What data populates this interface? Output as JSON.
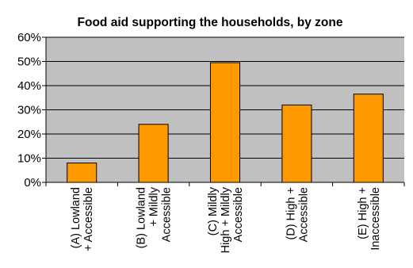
{
  "chart_data": {
    "type": "bar",
    "title": "Food aid supporting the households, by zone",
    "xlabel": "",
    "ylabel": "",
    "categories": [
      [
        "(A) Lowland",
        "+ Accessible"
      ],
      [
        "(B) Lowland",
        "+ Mildly",
        "Accessible"
      ],
      [
        "(C) Mildly",
        "High + Mildly",
        "Accessible"
      ],
      [
        "(D) High +",
        "Accessible"
      ],
      [
        "(E) High +",
        "Inaccessible"
      ]
    ],
    "values": [
      0.08,
      0.24,
      0.495,
      0.32,
      0.365
    ],
    "ylim": [
      0,
      0.6
    ],
    "yticks": [
      "0%",
      "10%",
      "20%",
      "30%",
      "40%",
      "50%",
      "60%"
    ],
    "grid": true,
    "legend": "none",
    "colors": {
      "bar_fill": "#ff9900",
      "bar_stroke": "#000000",
      "plot_bg": "#c0c0c0",
      "grid": "#000000",
      "page_bg": "#ffffff"
    }
  }
}
